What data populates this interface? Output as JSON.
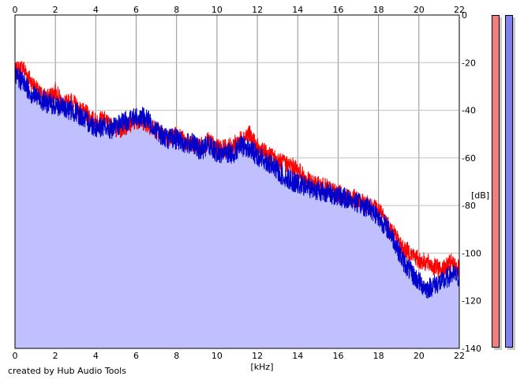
{
  "chart_data": {
    "type": "area",
    "xlabel": "[kHz]",
    "ylabel": "[dB]",
    "xlim": [
      0,
      22
    ],
    "ylim": [
      -140,
      0
    ],
    "x_ticks": [
      "0",
      "2",
      "4",
      "6",
      "8",
      "10",
      "12",
      "14",
      "16",
      "18",
      "20",
      "22"
    ],
    "y_ticks": [
      "0",
      "-20",
      "-40",
      "-60",
      "-80",
      "-100",
      "-120",
      "-140"
    ],
    "grid": true,
    "series": [
      {
        "color": "#ff0000",
        "x": [
          0,
          0.4,
          0.8,
          1.2,
          1.6,
          2.0,
          2.4,
          2.8,
          3.2,
          3.6,
          4.0,
          4.4,
          4.8,
          5.2,
          5.6,
          6.0,
          6.4,
          6.8,
          7.2,
          7.6,
          8.0,
          8.4,
          8.8,
          9.2,
          9.6,
          10.0,
          10.4,
          10.8,
          11.2,
          11.6,
          12.0,
          12.4,
          12.8,
          13.2,
          13.6,
          14.0,
          14.4,
          14.8,
          15.2,
          15.6,
          16.0,
          16.4,
          16.8,
          17.2,
          17.6,
          18.0,
          18.4,
          18.8,
          19.2,
          19.6,
          20.0,
          20.4,
          20.8,
          21.2,
          21.6,
          22.0
        ],
        "y": [
          -24,
          -22,
          -28,
          -33,
          -35,
          -32,
          -38,
          -36,
          -40,
          -42,
          -45,
          -44,
          -47,
          -48,
          -46,
          -44,
          -45,
          -47,
          -50,
          -52,
          -50,
          -53,
          -55,
          -55,
          -53,
          -56,
          -56,
          -55,
          -52,
          -50,
          -56,
          -58,
          -60,
          -62,
          -63,
          -65,
          -69,
          -71,
          -72,
          -73,
          -75,
          -76,
          -77,
          -79,
          -80,
          -82,
          -87,
          -92,
          -98,
          -100,
          -103,
          -104,
          -106,
          -107,
          -104,
          -107
        ]
      },
      {
        "color": "#0000cc",
        "x": [
          0,
          0.4,
          0.8,
          1.2,
          1.6,
          2.0,
          2.4,
          2.8,
          3.2,
          3.6,
          4.0,
          4.4,
          4.8,
          5.2,
          5.6,
          6.0,
          6.4,
          6.8,
          7.2,
          7.6,
          8.0,
          8.4,
          8.8,
          9.2,
          9.6,
          10.0,
          10.4,
          10.8,
          11.2,
          11.6,
          12.0,
          12.4,
          12.8,
          13.2,
          13.6,
          14.0,
          14.4,
          14.8,
          15.2,
          15.6,
          16.0,
          16.4,
          16.8,
          17.2,
          17.6,
          18.0,
          18.4,
          18.8,
          19.2,
          19.6,
          20.0,
          20.4,
          20.8,
          21.2,
          21.6,
          22.0
        ],
        "y": [
          -26,
          -28,
          -33,
          -35,
          -37,
          -38,
          -39,
          -40,
          -42,
          -45,
          -47,
          -47,
          -48,
          -46,
          -44,
          -43,
          -43,
          -46,
          -50,
          -52,
          -52,
          -54,
          -54,
          -57,
          -54,
          -58,
          -58,
          -58,
          -55,
          -56,
          -59,
          -61,
          -64,
          -67,
          -69,
          -71,
          -72,
          -73,
          -74,
          -75,
          -76,
          -77,
          -78,
          -80,
          -81,
          -85,
          -89,
          -95,
          -103,
          -108,
          -112,
          -115,
          -113,
          -112,
          -109,
          -110
        ]
      }
    ]
  },
  "meters": {
    "left_color": "#f08080",
    "right_color": "#8080f0"
  },
  "credit": "created by Hub Audio Tools"
}
